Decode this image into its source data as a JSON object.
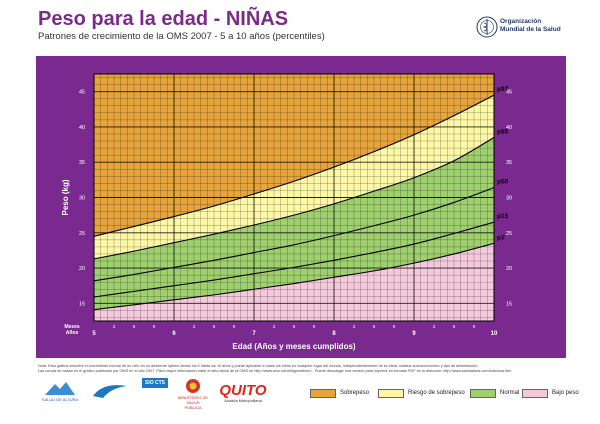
{
  "header": {
    "title": "Peso para la edad - NIÑAS",
    "subtitle": "Patrones de crecimiento de la OMS 2007 - 5 a 10 años (percentiles)",
    "org_line1": "Organización",
    "org_line2": "Mundial de la Salud"
  },
  "chart_data": {
    "type": "line",
    "title": "Peso para la edad - NIÑAS",
    "xlabel": "Edad (Años y meses cumplidos)",
    "ylabel": "Peso (kg)",
    "x_corner_label_1": "Meses",
    "x_corner_label_2": "Años",
    "xlim": [
      5,
      10
    ],
    "ylim": [
      12.5,
      47.5
    ],
    "y_ticks": [
      15,
      20,
      25,
      30,
      35,
      40,
      45
    ],
    "year_ticks": [
      5,
      6,
      7,
      8,
      9,
      10
    ],
    "month_ticks": [
      3,
      6,
      9
    ],
    "grid": true,
    "x": [
      5,
      5.5,
      6,
      6.5,
      7,
      7.5,
      8,
      8.5,
      9,
      9.5,
      10
    ],
    "series": [
      {
        "name": "p97",
        "values": [
          24.5,
          25.9,
          27.3,
          28.8,
          30.5,
          32.3,
          34.3,
          36.5,
          38.9,
          41.6,
          44.5
        ]
      },
      {
        "name": "p85",
        "values": [
          21.3,
          22.4,
          23.6,
          24.8,
          26.1,
          27.5,
          29.1,
          30.9,
          32.8,
          35.2,
          38.5
        ]
      },
      {
        "name": "p50",
        "values": [
          18.2,
          19.1,
          20.1,
          21.1,
          22.2,
          23.3,
          24.6,
          26.0,
          27.5,
          29.3,
          31.4
        ]
      },
      {
        "name": "p15",
        "values": [
          15.9,
          16.7,
          17.5,
          18.3,
          19.2,
          20.1,
          21.1,
          22.2,
          23.4,
          24.9,
          26.5
        ]
      },
      {
        "name": "p3",
        "values": [
          14.1,
          14.8,
          15.5,
          16.2,
          17.0,
          17.8,
          18.7,
          19.6,
          20.7,
          22.0,
          23.5
        ]
      }
    ],
    "zones": [
      {
        "name": "Sobrepeso",
        "color": "#e6a43c",
        "upper": "top",
        "lower": "p97"
      },
      {
        "name": "Riesgo de sobrepeso",
        "color": "#fbf7a6",
        "upper": "p97",
        "lower": "p85"
      },
      {
        "name": "Normal",
        "color": "#9fcf6e",
        "upper": "p85",
        "lower": "p3"
      },
      {
        "name": "Bajo peso",
        "color": "#f4c9dc",
        "upper": "p3",
        "lower": "bottom"
      }
    ]
  },
  "footnote": {
    "line1": "Nota: Esta gráfica describe el crecimiento normal de un niño en un ambiente óptimo desde los 5 hasta los 10 años y puede aplicarse a todos los niños en cualquier lugar del mundo, independientemente de su etnia, estatus socioeconómico y tipo de alimentación.",
    "line2": "Las curvas se basan en el gráfico publicado por OMS en el año 2007. Para mayor información visite el sitio oficial de la OMS en http://www.who.int/childgrowth/en/ - Puede descargar una versión para imprimir en formato PDF en la dirección: http://www.saludaltura.com/funciona.htm"
  },
  "logos": {
    "l1": "SALUD DE ALTURA",
    "l2": "SIO CTS",
    "l3": "MINISTERIO DE SALUD PUBLICA",
    "l4": "QUITO",
    "l4sub": "Alcaldía Metropolitana"
  },
  "legend": [
    {
      "label": "Sobrepeso",
      "color": "#e6a43c"
    },
    {
      "label": "Riesgo de sobrepeso",
      "color": "#fbf7a6"
    },
    {
      "label": "Normal",
      "color": "#9fcf6e"
    },
    {
      "label": "Bajo peso",
      "color": "#f4c9dc"
    }
  ]
}
